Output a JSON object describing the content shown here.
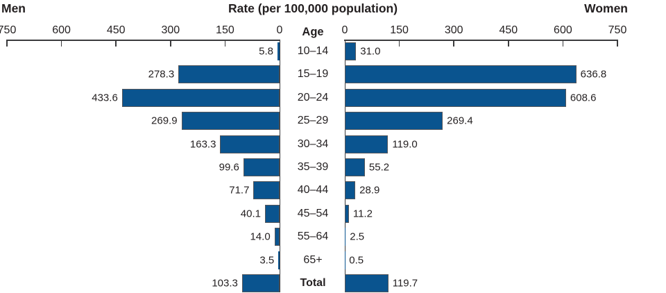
{
  "header": {
    "left_label": "Men",
    "title": "Rate (per 100,000 population)",
    "right_label": "Women",
    "age_column_label": "Age"
  },
  "chart_data": {
    "type": "bar",
    "variant": "back-to-back-pyramid",
    "title": "Rate (per 100,000 population)",
    "xlabel": "Rate (per 100,000 population)",
    "ylabel": "Age",
    "axis": {
      "men_ticks": [
        "750",
        "600",
        "450",
        "300",
        "150",
        "0"
      ],
      "women_ticks": [
        "0",
        "150",
        "300",
        "450",
        "600",
        "750"
      ],
      "max": 750,
      "grid": false
    },
    "categories": [
      "10–14",
      "15–19",
      "20–24",
      "25–29",
      "30–34",
      "35–39",
      "40–44",
      "45–54",
      "55–64",
      "65+",
      "Total"
    ],
    "series": [
      {
        "name": "Men",
        "values": [
          5.8,
          278.3,
          433.6,
          269.9,
          163.3,
          99.6,
          71.7,
          40.1,
          14.0,
          3.5,
          103.3
        ]
      },
      {
        "name": "Women",
        "values": [
          31.0,
          636.8,
          608.6,
          269.4,
          119.0,
          55.2,
          28.9,
          11.2,
          2.5,
          0.5,
          119.7
        ]
      }
    ],
    "rows": [
      {
        "age": "10–14",
        "men": 5.8,
        "men_label": "5.8",
        "women": 31.0,
        "women_label": "31.0",
        "bold": false
      },
      {
        "age": "15–19",
        "men": 278.3,
        "men_label": "278.3",
        "women": 636.8,
        "women_label": "636.8",
        "bold": false
      },
      {
        "age": "20–24",
        "men": 433.6,
        "men_label": "433.6",
        "women": 608.6,
        "women_label": "608.6",
        "bold": false
      },
      {
        "age": "25–29",
        "men": 269.9,
        "men_label": "269.9",
        "women": 269.4,
        "women_label": "269.4",
        "bold": false
      },
      {
        "age": "30–34",
        "men": 163.3,
        "men_label": "163.3",
        "women": 119.0,
        "women_label": "119.0",
        "bold": false
      },
      {
        "age": "35–39",
        "men": 99.6,
        "men_label": "99.6",
        "women": 55.2,
        "women_label": "55.2",
        "bold": false
      },
      {
        "age": "40–44",
        "men": 71.7,
        "men_label": "71.7",
        "women": 28.9,
        "women_label": "28.9",
        "bold": false
      },
      {
        "age": "45–54",
        "men": 40.1,
        "men_label": "40.1",
        "women": 11.2,
        "women_label": "11.2",
        "bold": false
      },
      {
        "age": "55–64",
        "men": 14.0,
        "men_label": "14.0",
        "women": 2.5,
        "women_label": "2.5",
        "bold": false
      },
      {
        "age": "65+",
        "men": 3.5,
        "men_label": "3.5",
        "women": 0.5,
        "women_label": "0.5",
        "bold": false
      },
      {
        "age": "Total",
        "men": 103.3,
        "men_label": "103.3",
        "women": 119.7,
        "women_label": "119.7",
        "bold": true
      }
    ],
    "colors": {
      "bar_fill": "#0a548f",
      "bar_border": "#55565a",
      "axis": "#3a3a3c",
      "text": "#231f20"
    }
  }
}
